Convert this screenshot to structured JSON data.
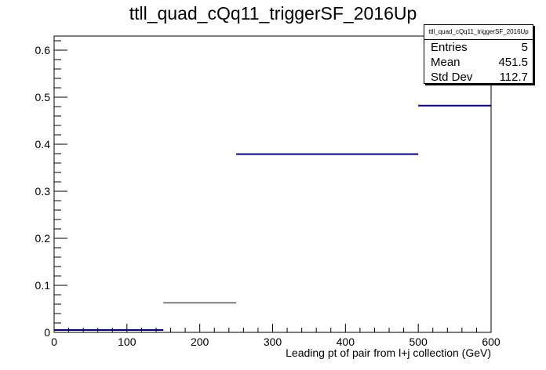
{
  "chart_data": {
    "type": "histogram",
    "title": "ttll_quad_cQq11_triggerSF_2016Up",
    "xlabel": "Leading pt of pair from l+j collection (GeV)",
    "ylabel": "",
    "xlim": [
      0,
      600
    ],
    "ylim": [
      0,
      0.63
    ],
    "x_ticks": [
      0,
      100,
      200,
      300,
      400,
      500,
      600
    ],
    "y_ticks": [
      0,
      0.1,
      0.2,
      0.3,
      0.4,
      0.5,
      0.6
    ],
    "bins": [
      {
        "x_low": 0,
        "x_high": 150,
        "value": 0.005,
        "color": "#000080"
      },
      {
        "x_low": 150,
        "x_high": 250,
        "value": 0.063,
        "color": "#000000"
      },
      {
        "x_low": 250,
        "x_high": 500,
        "value": 0.379,
        "color": "#000080"
      },
      {
        "x_low": 500,
        "x_high": 600,
        "value": 0.482,
        "color": "#000080"
      }
    ],
    "grid": false
  },
  "stats": {
    "name": "ttll_quad_cQq11_triggerSF_2016Up",
    "rows": [
      {
        "label": "Entries",
        "value": "5"
      },
      {
        "label": "Mean",
        "value": "451.5"
      },
      {
        "label": "Std Dev",
        "value": "112.7"
      }
    ]
  }
}
